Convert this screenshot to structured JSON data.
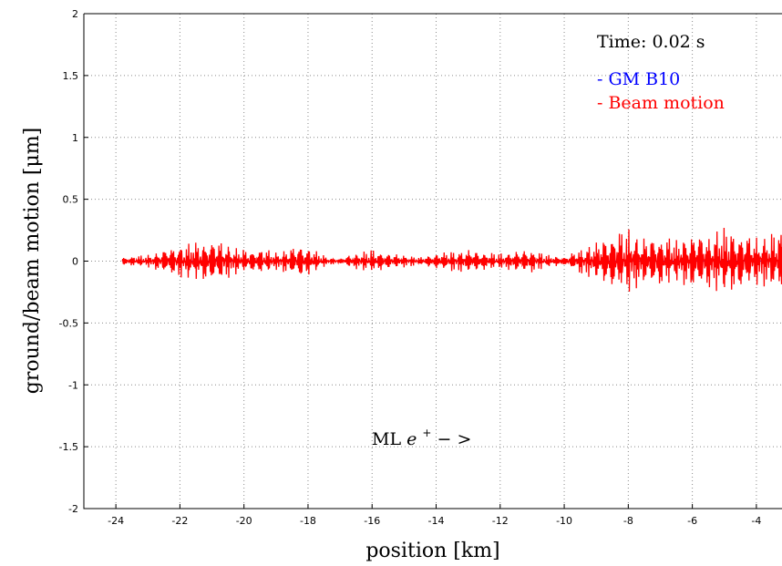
{
  "chart_data": {
    "type": "line",
    "xlabel": "position [km]",
    "ylabel": "ground/beam motion [μm]",
    "xlim": [
      -25,
      -3.2
    ],
    "ylim": [
      -2,
      2
    ],
    "x_ticks": [
      -24,
      -22,
      -20,
      -18,
      -16,
      -14,
      -12,
      -10,
      -8,
      -6,
      -4
    ],
    "x_tick_labels": [
      "-24",
      "-22",
      "-20",
      "-18",
      "-16",
      "-14",
      "-12",
      "-10",
      "-8",
      "-6",
      "-4"
    ],
    "y_ticks": [
      2,
      1.5,
      1,
      0.5,
      0,
      -0.5,
      -1,
      -1.5,
      -2
    ],
    "y_tick_labels": [
      "2",
      "1.5",
      "1",
      "0.5",
      "0",
      "-0.5",
      "-1",
      "-1.5",
      "-2"
    ],
    "grid": true,
    "legend_position": "top-right",
    "time_label": "Time: 0.02 s",
    "annotation_prefix": "ML ",
    "annotation_symbol": "e",
    "annotation_sup": "+",
    "annotation_suffix": " − >",
    "series": [
      {
        "name": "GM B10",
        "color": "#0000ff",
        "x": [
          -23.8,
          -3.2
        ],
        "y": [
          0,
          0
        ]
      },
      {
        "name": "Beam motion",
        "color": "#ff0000",
        "x": [
          -23.8,
          -23.0,
          -22.5,
          -22.0,
          -21.5,
          -21.0,
          -20.6,
          -20.2,
          -19.8,
          -19.4,
          -19.0,
          -18.6,
          -18.2,
          -17.8,
          -17.4,
          -17.0,
          -16.6,
          -16.0,
          -15.5,
          -15.0,
          -14.5,
          -14.0,
          -13.5,
          -13.0,
          -12.5,
          -12.0,
          -11.5,
          -11.0,
          -10.5,
          -10.0,
          -9.5,
          -9.0,
          -8.5,
          -8.0,
          -7.5,
          -7.0,
          -6.5,
          -6.0,
          -5.5,
          -5.0,
          -4.5,
          -4.0,
          -3.5,
          -3.2
        ],
        "envelope": [
          0.03,
          0.05,
          0.09,
          0.13,
          0.15,
          0.16,
          0.15,
          0.1,
          0.08,
          0.1,
          0.07,
          0.1,
          0.13,
          0.09,
          0.03,
          0.02,
          0.06,
          0.09,
          0.06,
          0.05,
          0.03,
          0.06,
          0.08,
          0.09,
          0.07,
          0.06,
          0.08,
          0.09,
          0.05,
          0.03,
          0.1,
          0.15,
          0.21,
          0.26,
          0.18,
          0.2,
          0.17,
          0.22,
          0.21,
          0.27,
          0.22,
          0.19,
          0.22,
          0.24
        ]
      }
    ]
  }
}
